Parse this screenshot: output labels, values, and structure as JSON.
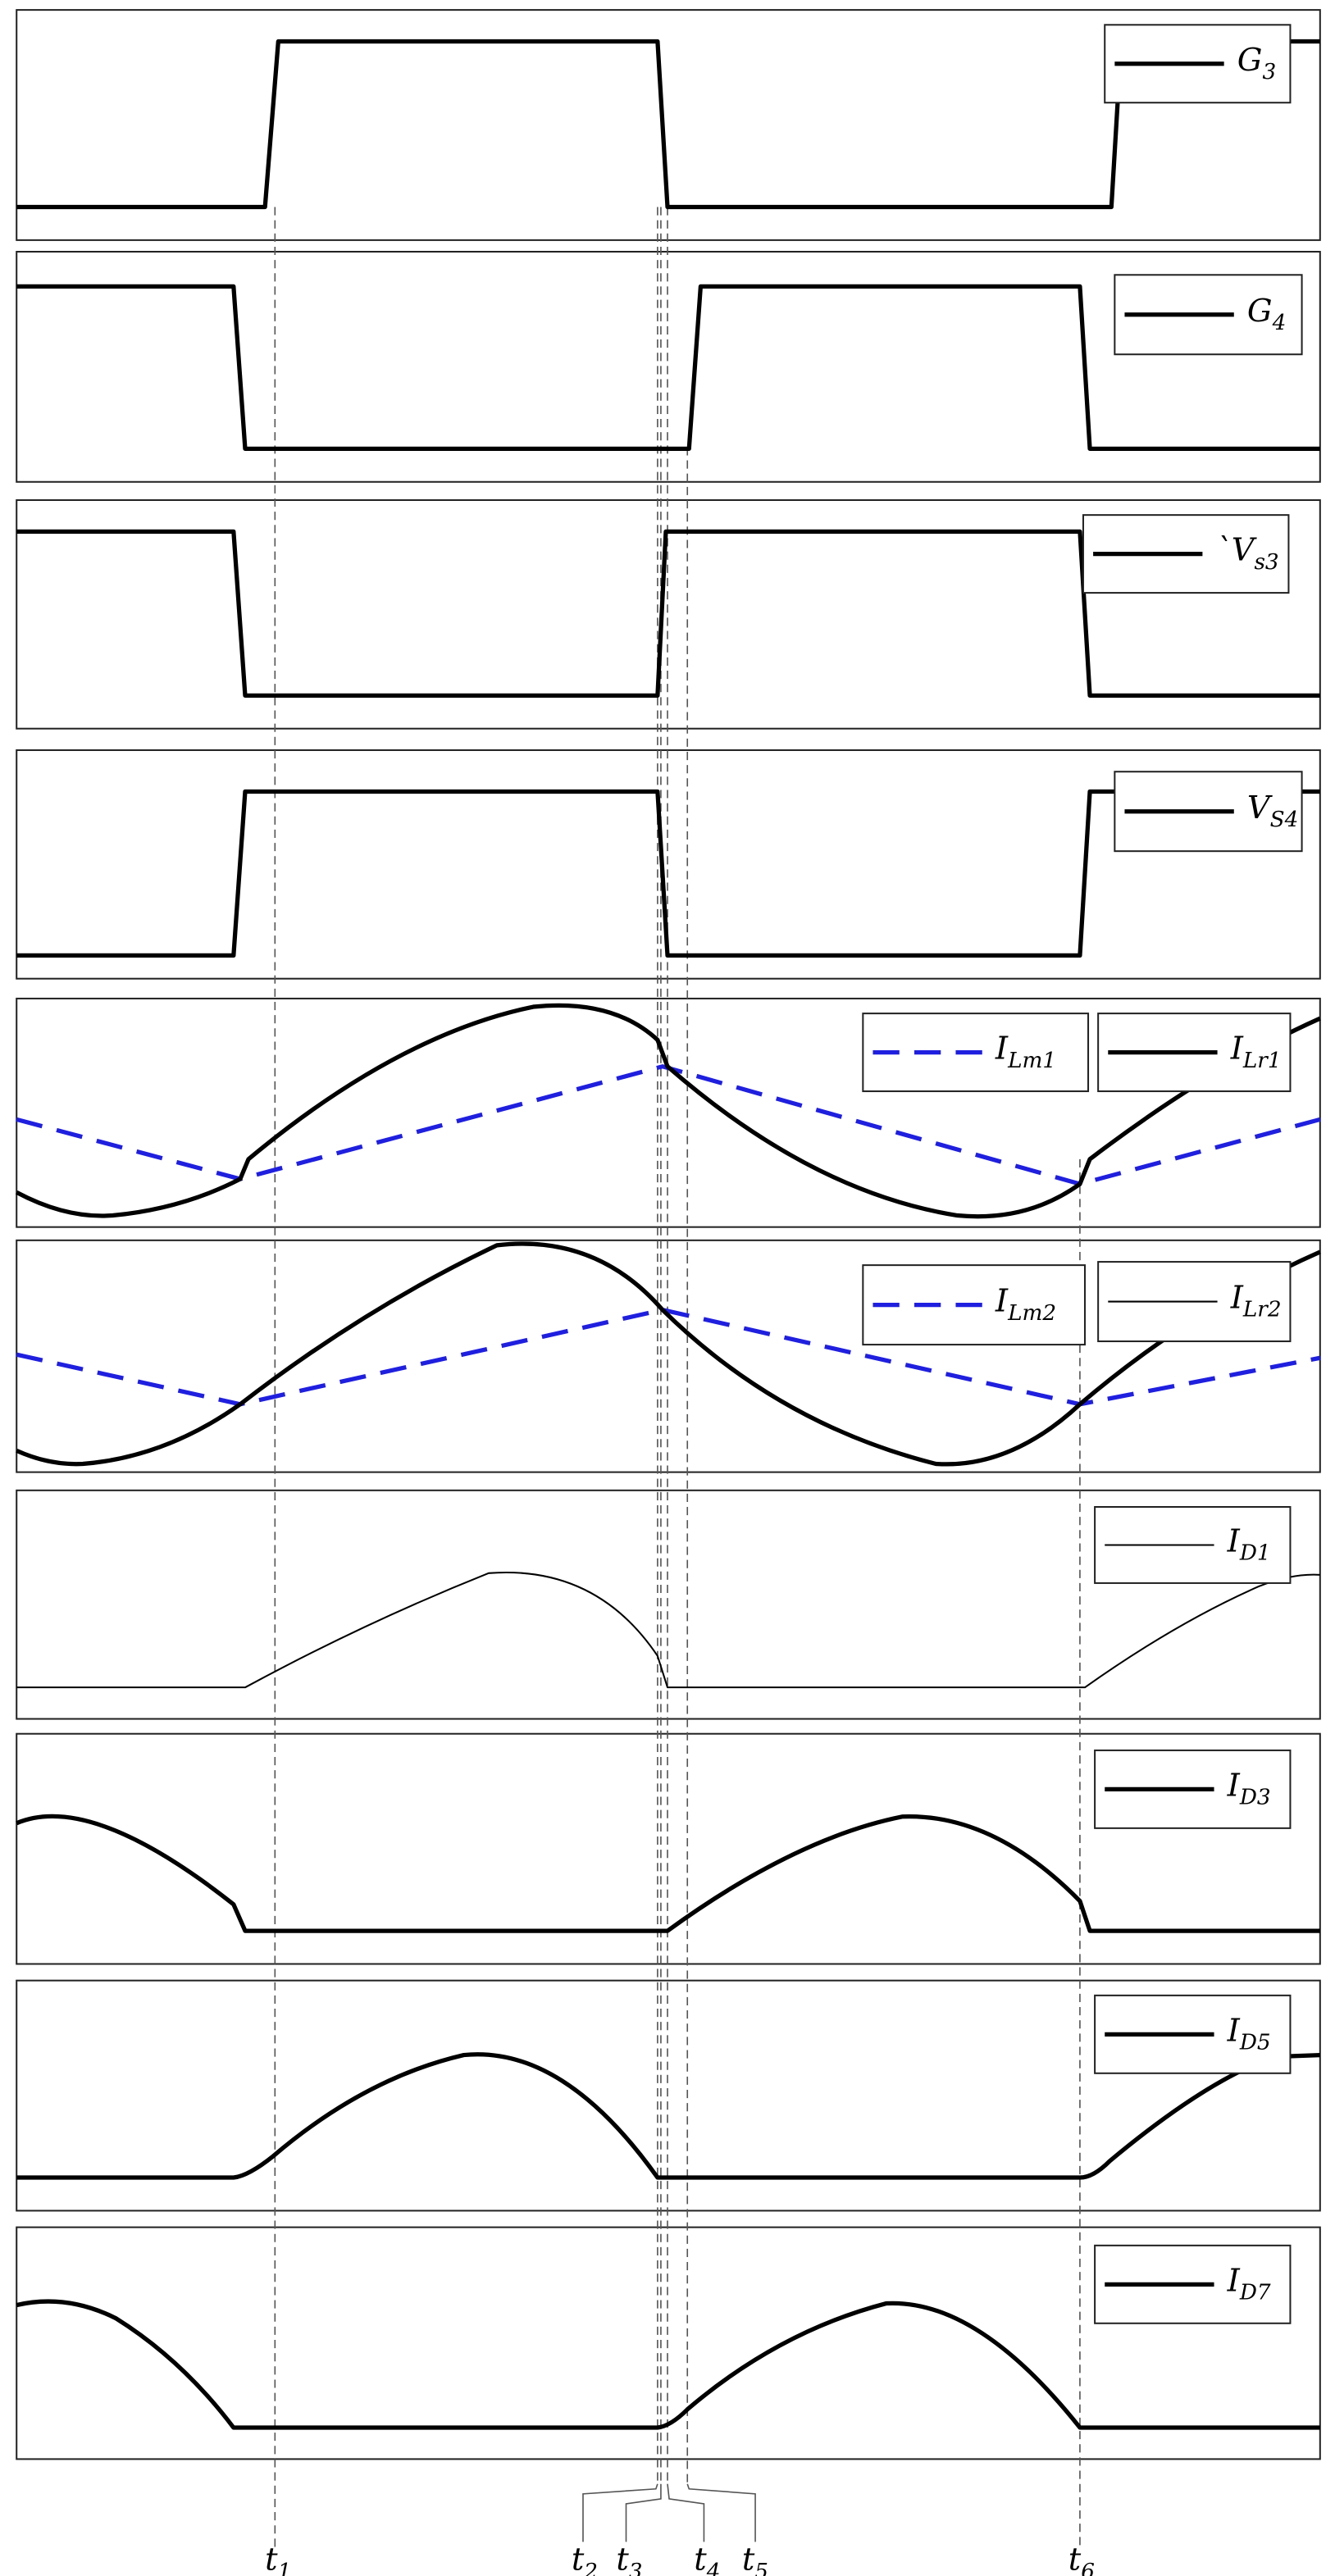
{
  "panels": [
    {
      "legend": [
        {
          "symbol": "G",
          "subscript": "3"
        }
      ]
    },
    {
      "legend": [
        {
          "symbol": "G",
          "subscript": "4"
        }
      ]
    },
    {
      "legend": [
        {
          "symbol": "`V",
          "subscript": "s3"
        }
      ]
    },
    {
      "legend": [
        {
          "symbol": "V",
          "subscript": "S4"
        }
      ]
    },
    {
      "legend": [
        {
          "symbol": "I",
          "subscript": "Lm1"
        },
        {
          "symbol": "I",
          "subscript": "Lr1"
        }
      ]
    },
    {
      "legend": [
        {
          "symbol": "I",
          "subscript": "Lm2"
        },
        {
          "symbol": "I",
          "subscript": "Lr2"
        }
      ]
    },
    {
      "legend": [
        {
          "symbol": "I",
          "subscript": "D1"
        }
      ]
    },
    {
      "legend": [
        {
          "symbol": "I",
          "subscript": "D3"
        }
      ]
    },
    {
      "legend": [
        {
          "symbol": "I",
          "subscript": "D5"
        }
      ]
    },
    {
      "legend": [
        {
          "symbol": "I",
          "subscript": "D7"
        }
      ]
    }
  ],
  "time_labels": [
    {
      "symbol": "t",
      "subscript": "1"
    },
    {
      "symbol": "t",
      "subscript": "2"
    },
    {
      "symbol": "t",
      "subscript": "3"
    },
    {
      "symbol": "t",
      "subscript": "4"
    },
    {
      "symbol": "t",
      "subscript": "5"
    },
    {
      "symbol": "t",
      "subscript": "6"
    }
  ]
}
